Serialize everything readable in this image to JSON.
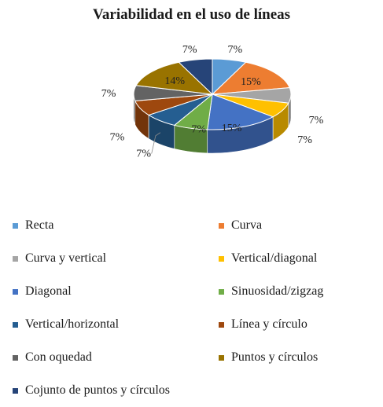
{
  "chart_data": {
    "type": "pie",
    "title": "Variabilidad en el uso de líneas",
    "slices": [
      {
        "name": "Recta",
        "value": 7,
        "label": "7%",
        "color": "#5b9bd5"
      },
      {
        "name": "Curva",
        "value": 15,
        "label": "15%",
        "color": "#ed7d31"
      },
      {
        "name": "Curva y vertical",
        "value": 7,
        "label": "7%",
        "color": "#a5a5a5"
      },
      {
        "name": "Vertical/diagonal",
        "value": 7,
        "label": "7%",
        "color": "#ffc000"
      },
      {
        "name": "Diagonal",
        "value": 15,
        "label": "15%",
        "color": "#4472c4"
      },
      {
        "name": "Sinuosidad/zigzag",
        "value": 7,
        "label": "7%",
        "color": "#70ad47"
      },
      {
        "name": "Vertical/horizontal",
        "value": 7,
        "label": "7%",
        "color": "#255e91"
      },
      {
        "name": "Línea y círculo",
        "value": 7,
        "label": "7%",
        "color": "#9e480e"
      },
      {
        "name": "Con oquedad",
        "value": 7,
        "label": "7%",
        "color": "#636363"
      },
      {
        "name": "Puntos y círculos",
        "value": 14,
        "label": "14%",
        "color": "#997300"
      },
      {
        "name": "Cojunto de puntos y círculos",
        "value": 7,
        "label": "7%",
        "color": "#264478"
      }
    ],
    "legend_position": "bottom",
    "style": "3d-pie"
  }
}
